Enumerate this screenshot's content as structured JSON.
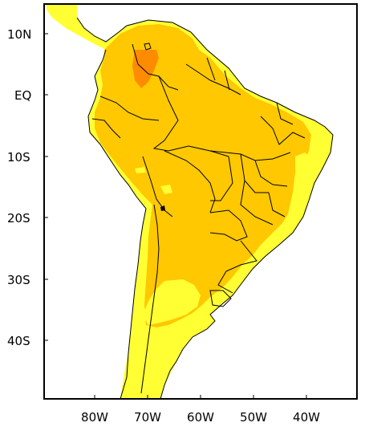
{
  "map": {
    "colors": {
      "ocean": "#ffffff",
      "light_yellow": "#ffff33",
      "gold": "#ffc800",
      "orange": "#ff8c00",
      "border": "#000000"
    },
    "lat_ticks": [
      "10N",
      "EQ",
      "10S",
      "20S",
      "30S",
      "40S"
    ],
    "lon_ticks": [
      "80W",
      "70W",
      "60W",
      "50W",
      "40W"
    ]
  }
}
